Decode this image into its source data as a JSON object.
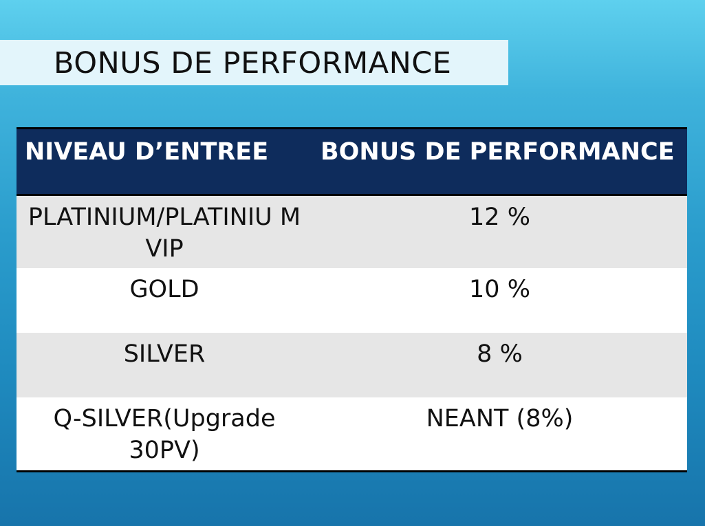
{
  "slide": {
    "title": "BONUS DE PERFORMANCE"
  },
  "table": {
    "headers": [
      "NIVEAU D’ENTREE",
      "BONUS DE PERFORMANCE"
    ],
    "rows": [
      {
        "level": "PLATINIUM/PLATINIU M VIP",
        "bonus": "12 %"
      },
      {
        "level": "GOLD",
        "bonus": "10 %"
      },
      {
        "level": "SILVER",
        "bonus": "8 %"
      },
      {
        "level": "Q-SILVER(Upgrade 30PV)",
        "bonus": "NEANT (8%)"
      }
    ]
  },
  "colors": {
    "background_top": "#5ed0ee",
    "background_bottom": "#1774ab",
    "title_bar": "#e3f5fb",
    "header_fill": "#0e2c5c",
    "row_shaded": "#e6e6e6",
    "row_plain": "#ffffff"
  }
}
